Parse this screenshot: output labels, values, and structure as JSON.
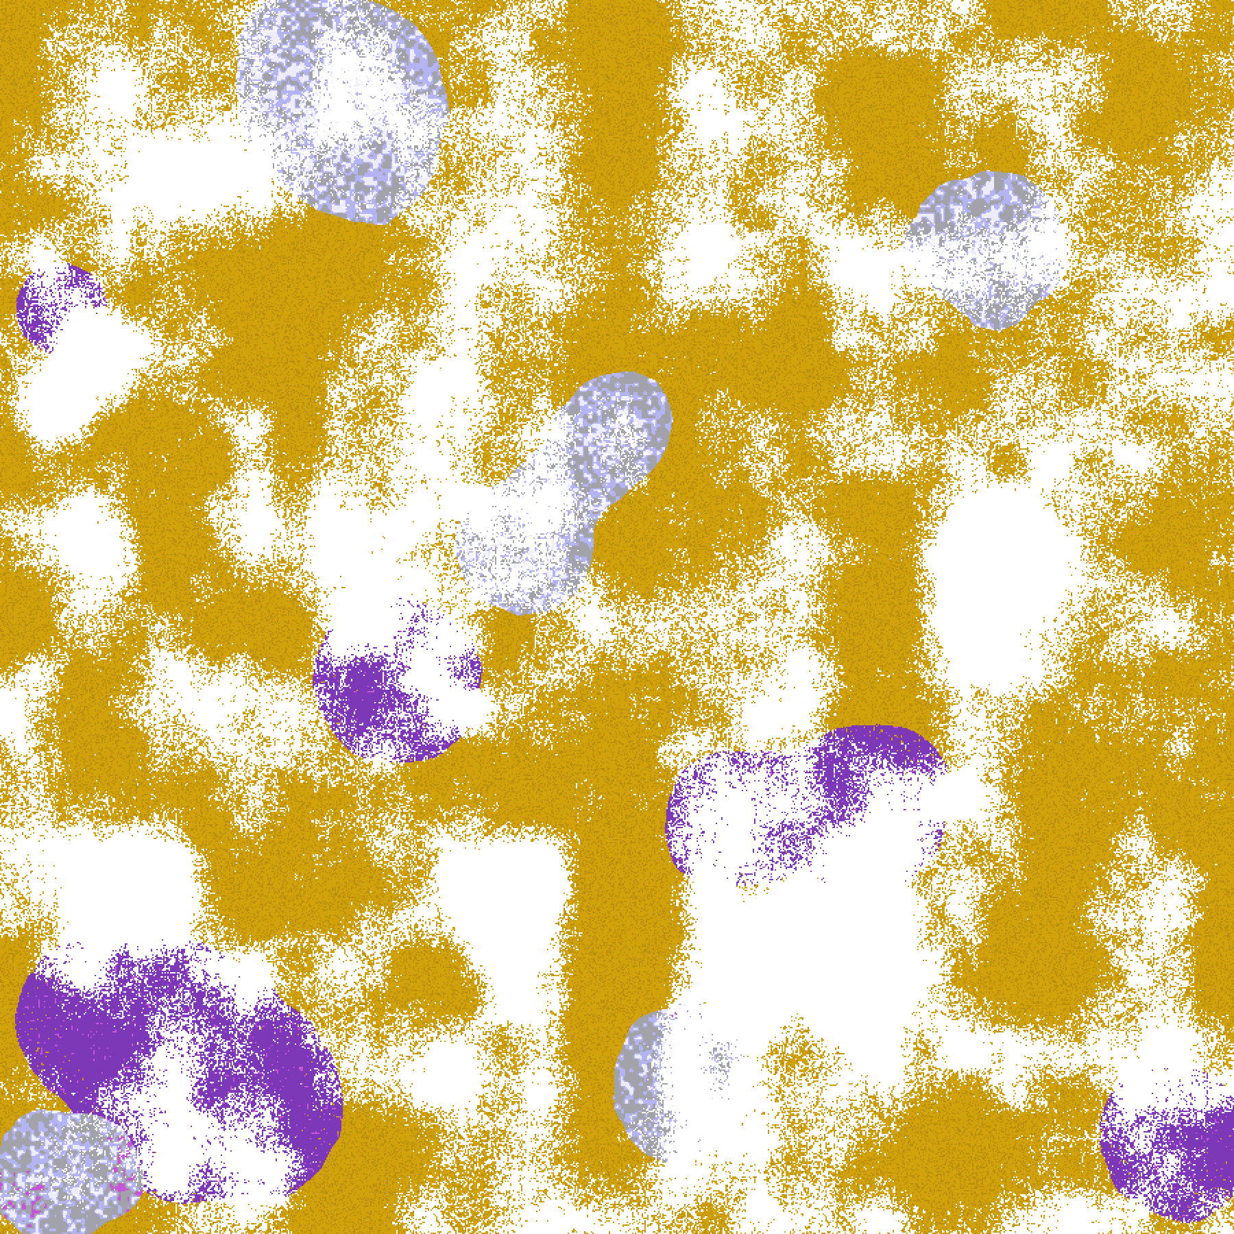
{
  "map": {
    "kind": "satellite-cloud-classification",
    "palette": {
      "clear": "#ffffff",
      "gold": "#d2a20c",
      "gold_dark": "#b8900e",
      "purple": "#7c38b6",
      "magenta": "#c655da",
      "gray": "#a2a2aa",
      "lavender": "#b4b4f2",
      "pale": "#ececfc"
    },
    "icon": "satellite-imagery-icon"
  }
}
